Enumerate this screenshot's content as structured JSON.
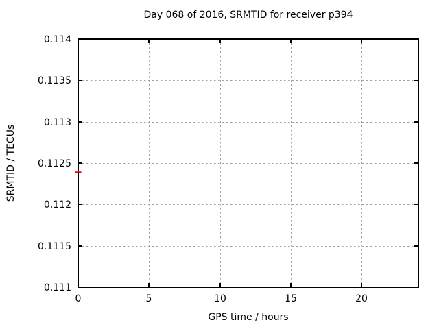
{
  "chart_data": {
    "type": "line",
    "title": "Day 068 of 2016, SRMTID for receiver p394",
    "xlabel": "GPS time / hours",
    "ylabel": "SRMTID / TECUs",
    "xlim": [
      0,
      24
    ],
    "ylim": [
      0.111,
      0.114
    ],
    "xticks": {
      "values": [
        0,
        5,
        10,
        15,
        20
      ],
      "labels": [
        "0",
        "5",
        "10",
        "15",
        "20"
      ]
    },
    "yticks": {
      "values": [
        0.111,
        0.1115,
        0.112,
        0.1125,
        0.113,
        0.1135,
        0.114
      ],
      "labels": [
        "0.111",
        "0.1115",
        "0.112",
        "0.1125",
        "0.113",
        "0.1135",
        "0.114"
      ]
    },
    "grid": true,
    "legend": "none",
    "series": [
      {
        "name": "SRMTID",
        "marker": "horizontal-dash",
        "color": "#dd0000",
        "points": [
          [
            0.0,
            0.11239
          ]
        ]
      }
    ],
    "colors": {
      "background": "#ffffff",
      "border": "#000000",
      "grid": "#a0a0a0",
      "tick_label": "#000000"
    }
  }
}
